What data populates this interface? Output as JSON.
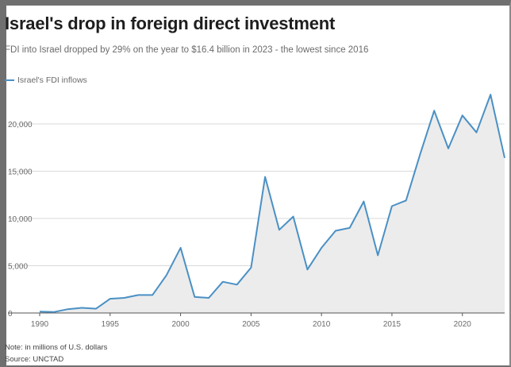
{
  "title": "Israel's drop in foreign direct investment",
  "subtitle": "FDI into Israel dropped by 29% on the year to $16.4 billion in 2023 - the lowest since 2016",
  "note": "Note: in millions of U.S. dollars",
  "source": "Source: UNCTAD",
  "colors": {
    "line": "#4a90c4",
    "area": "#ececec",
    "grid": "#d9d9d9"
  },
  "chart_data": {
    "type": "area",
    "series": [
      {
        "name": "Israel's FDI inflows",
        "x": [
          1990,
          1991,
          1992,
          1993,
          1994,
          1995,
          1996,
          1997,
          1998,
          1999,
          2000,
          2001,
          2002,
          2003,
          2004,
          2005,
          2006,
          2007,
          2008,
          2009,
          2010,
          2011,
          2012,
          2013,
          2014,
          2015,
          2016,
          2017,
          2018,
          2019,
          2020,
          2021,
          2022,
          2023
        ],
        "values": [
          150,
          100,
          400,
          550,
          450,
          1500,
          1600,
          1900,
          1900,
          4000,
          6900,
          1700,
          1600,
          3300,
          3000,
          4800,
          14400,
          8800,
          10200,
          4600,
          6900,
          8700,
          9000,
          11800,
          6100,
          11300,
          11900,
          16800,
          21400,
          17400,
          20900,
          19100,
          23100,
          16400
        ]
      }
    ],
    "x_ticks": [
      "1990",
      "1995",
      "2000",
      "2005",
      "2010",
      "2015",
      "2020"
    ],
    "y_ticks": [
      {
        "value": 0,
        "label": "0"
      },
      {
        "value": 5000,
        "label": "5,000"
      },
      {
        "value": 10000,
        "label": "10,000"
      },
      {
        "value": 15000,
        "label": "15,000"
      },
      {
        "value": 20000,
        "label": "20,000"
      }
    ],
    "xlim": [
      1990,
      2023
    ],
    "ylim": [
      0,
      25000
    ],
    "grid": true,
    "legend_placement": "top-left"
  }
}
